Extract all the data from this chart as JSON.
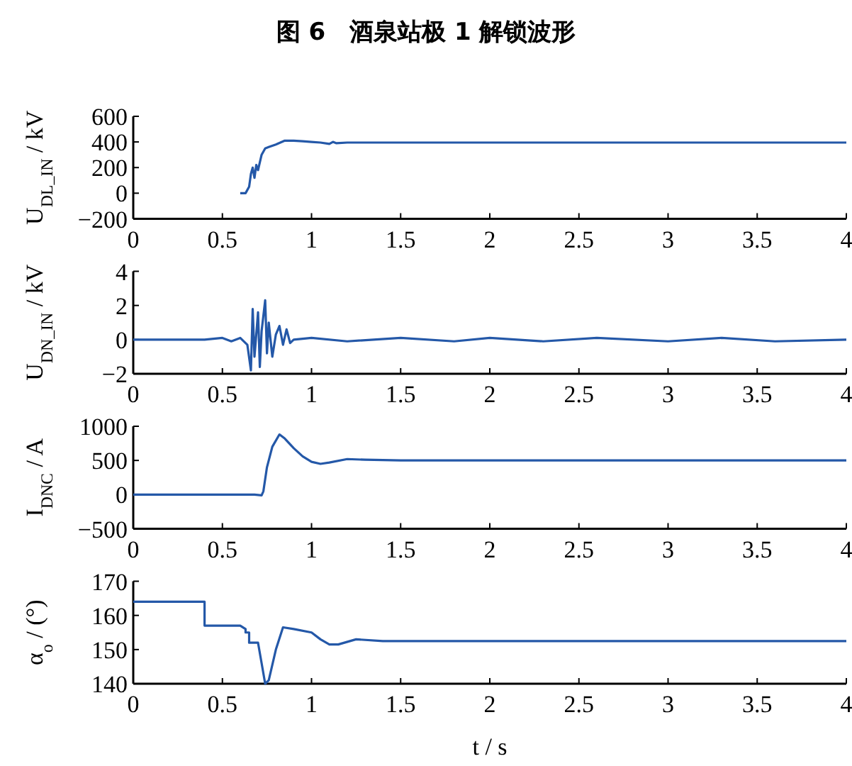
{
  "chart_data": [
    {
      "type": "line",
      "title": "图 6　酒泉站极 1 解锁波形",
      "ylabel": "U$_{DL_IN}$ / kV",
      "xlim": [
        0,
        4
      ],
      "xticks": [
        0,
        0.5,
        1,
        1.5,
        2,
        2.5,
        3,
        3.5,
        4
      ],
      "ylim": [
        -200,
        600
      ],
      "yticks": [
        -200,
        0,
        200,
        400,
        600
      ],
      "grid": false,
      "series": [
        {
          "color": "#2458a8",
          "x": [
            0.6,
            0.63,
            0.65,
            0.66,
            0.67,
            0.68,
            0.69,
            0.7,
            0.72,
            0.74,
            0.76,
            0.8,
            0.85,
            0.9,
            0.95,
            1.0,
            1.05,
            1.1,
            1.12,
            1.14,
            1.2,
            2,
            3,
            4
          ],
          "values": [
            0,
            0,
            50,
            150,
            200,
            120,
            220,
            180,
            300,
            350,
            360,
            380,
            410,
            410,
            405,
            400,
            395,
            385,
            400,
            390,
            395,
            395,
            395,
            395
          ]
        }
      ]
    },
    {
      "type": "line",
      "ylabel": "U$_{DN_IN}$ / kV",
      "xlim": [
        0,
        4
      ],
      "xticks": [
        0,
        0.5,
        1,
        1.5,
        2,
        2.5,
        3,
        3.5,
        4
      ],
      "ylim": [
        -2,
        4
      ],
      "yticks": [
        -2,
        0,
        2,
        4
      ],
      "grid": false,
      "series": [
        {
          "color": "#2458a8",
          "x": [
            0,
            0.2,
            0.4,
            0.5,
            0.55,
            0.6,
            0.64,
            0.66,
            0.67,
            0.68,
            0.7,
            0.71,
            0.72,
            0.74,
            0.75,
            0.76,
            0.78,
            0.8,
            0.82,
            0.84,
            0.86,
            0.88,
            0.9,
            1.0,
            1.2,
            1.5,
            1.8,
            2.0,
            2.3,
            2.6,
            3.0,
            3.3,
            3.6,
            4.0
          ],
          "values": [
            0,
            0,
            0,
            0.1,
            -0.1,
            0.1,
            -0.3,
            -1.8,
            1.8,
            -1.0,
            1.6,
            -1.6,
            0.5,
            2.3,
            -0.8,
            1.0,
            -1.0,
            0.3,
            0.8,
            -0.3,
            0.6,
            -0.2,
            0,
            0.1,
            -0.1,
            0.1,
            -0.1,
            0.1,
            -0.1,
            0.1,
            -0.1,
            0.1,
            -0.1,
            0
          ]
        }
      ]
    },
    {
      "type": "line",
      "ylabel": "I$_{DNC}$ / A",
      "xlim": [
        0,
        4
      ],
      "xticks": [
        0,
        0.5,
        1,
        1.5,
        2,
        2.5,
        3,
        3.5,
        4
      ],
      "ylim": [
        -500,
        1000
      ],
      "yticks": [
        -500,
        0,
        500,
        1000
      ],
      "grid": false,
      "series": [
        {
          "color": "#2458a8",
          "x": [
            0,
            0.68,
            0.72,
            0.73,
            0.75,
            0.78,
            0.82,
            0.85,
            0.9,
            0.95,
            1.0,
            1.05,
            1.1,
            1.2,
            1.3,
            1.5,
            1.8,
            2.0,
            2.5,
            3.0,
            3.5,
            4.0
          ],
          "values": [
            0,
            0,
            -10,
            50,
            400,
            700,
            880,
            820,
            680,
            560,
            480,
            450,
            470,
            520,
            510,
            500,
            500,
            500,
            500,
            500,
            500,
            500
          ]
        }
      ]
    },
    {
      "type": "line",
      "ylabel": "α$_{o}$ / (°)",
      "xlabel": "t / s",
      "xlim": [
        0,
        4
      ],
      "xticks": [
        0,
        0.5,
        1,
        1.5,
        2,
        2.5,
        3,
        3.5,
        4
      ],
      "ylim": [
        140,
        170
      ],
      "yticks": [
        140,
        150,
        160,
        170
      ],
      "grid": false,
      "series": [
        {
          "color": "#2458a8",
          "x": [
            0,
            0.4,
            0.4,
            0.6,
            0.63,
            0.63,
            0.65,
            0.65,
            0.7,
            0.72,
            0.74,
            0.76,
            0.8,
            0.84,
            0.9,
            1.0,
            1.05,
            1.1,
            1.15,
            1.25,
            1.4,
            1.8,
            4.0
          ],
          "values": [
            164,
            164,
            157,
            157,
            156,
            155,
            155,
            152,
            152,
            146,
            140,
            141,
            150,
            156.5,
            156,
            155,
            153,
            151.5,
            151.5,
            153,
            152.5,
            152.5,
            152.5
          ]
        }
      ]
    }
  ]
}
